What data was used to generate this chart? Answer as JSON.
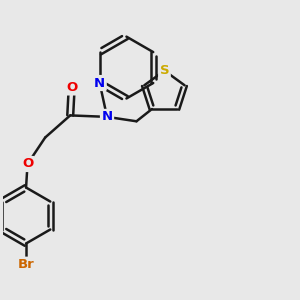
{
  "background_color": "#e8e8e8",
  "bond_color": "#1a1a1a",
  "bond_width": 1.8,
  "atom_colors": {
    "N": "#0000ee",
    "O": "#ee0000",
    "S": "#ccaa00",
    "Br": "#cc6600",
    "C": "#1a1a1a"
  },
  "font_size": 9.5,
  "fig_size": [
    3.0,
    3.0
  ],
  "dpi": 100,
  "xlim": [
    0,
    10
  ],
  "ylim": [
    0,
    10
  ]
}
